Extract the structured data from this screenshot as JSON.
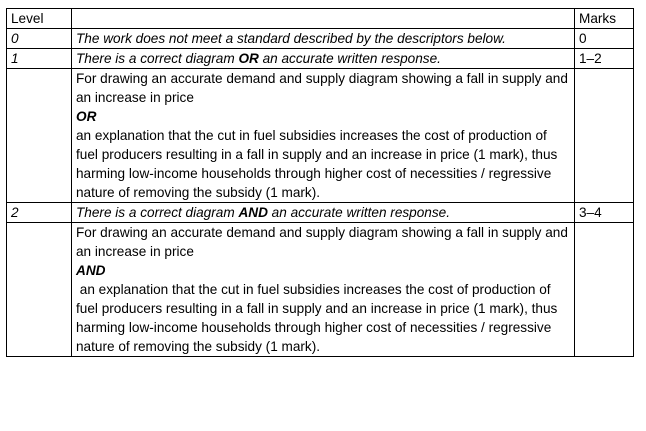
{
  "table": {
    "header": {
      "level": "Level",
      "description": "",
      "marks": "Marks"
    },
    "row0": {
      "level": "0",
      "descriptor": "The work does not meet a standard described by the descriptors below.",
      "marks": "0"
    },
    "row1": {
      "level": "1",
      "descriptor_pre": "There is a correct diagram ",
      "descriptor_key": "OR",
      "descriptor_post": " an accurate written response.",
      "marks": "1–2",
      "guidance": {
        "diagram": "For drawing an accurate demand and supply diagram showing a fall in supply and an increase in price",
        "connector": "OR",
        "explanation": "an explanation that the cut in fuel subsidies increases the cost of production of fuel producers resulting in a fall in supply and an increase in price (1 mark), thus harming low-income households through higher cost of necessities / regressive nature of removing the subsidy (1 mark)."
      }
    },
    "row2": {
      "level": "2",
      "descriptor_pre": "There is a correct diagram ",
      "descriptor_key": "AND",
      "descriptor_post": " an accurate written response.",
      "marks": "3–4",
      "guidance": {
        "diagram": "For drawing an accurate demand and supply diagram showing a fall in supply and an increase in price",
        "connector": "AND",
        "explanation": " an explanation that the cut in fuel subsidies increases the cost of production of fuel producers resulting in a fall in supply and an increase in price (1 mark), thus harming low-income households through higher cost of necessities / regressive nature of removing the subsidy (1 mark)."
      }
    }
  }
}
